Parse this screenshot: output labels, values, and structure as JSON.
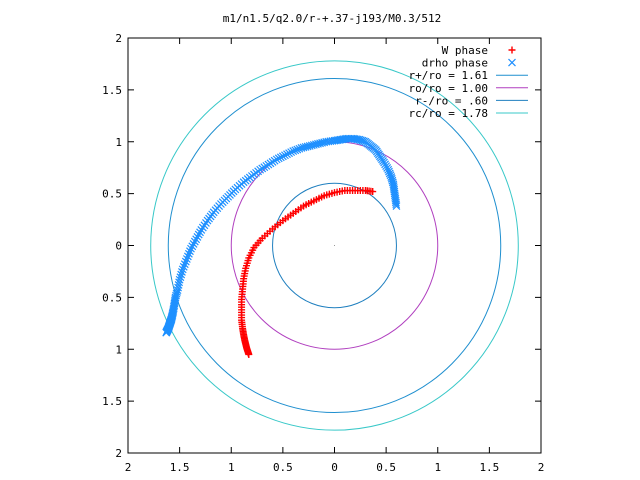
{
  "chart_data": {
    "type": "scatter",
    "title": "m1/n1.5/q2.0/r-+.37-j193/M0.3/512",
    "xlabel": "",
    "ylabel": "",
    "xlim": [
      2,
      -2
    ],
    "ylim": [
      -2,
      2
    ],
    "x_ticks": [
      2,
      1.5,
      1,
      0.5,
      0,
      -0.5,
      -1,
      -1.5,
      -2
    ],
    "y_ticks": [
      -2,
      -1.5,
      -1,
      -0.5,
      0,
      0.5,
      1,
      1.5,
      2
    ],
    "x_tick_labels": [
      "2",
      "1.5",
      "1",
      "0.5",
      "0",
      "0.5",
      "1",
      "1.5",
      "2"
    ],
    "y_tick_labels": [
      "2",
      "1.5",
      "1",
      "0.5",
      "0",
      "0.5",
      "1",
      "1.5",
      "2"
    ],
    "grid": false,
    "legend_position": "top-right",
    "series": [
      {
        "name": "W phase",
        "kind": "points",
        "marker": "+",
        "color": "#ff0000",
        "x": [
          -0.37,
          -0.3,
          -0.2,
          -0.1,
          0.0,
          0.1,
          0.2,
          0.3,
          0.4,
          0.5,
          0.6,
          0.7,
          0.78,
          0.83,
          0.86,
          0.88,
          0.89,
          0.9,
          0.9,
          0.9,
          0.89,
          0.88,
          0.87,
          0.86,
          0.85,
          0.84,
          0.83
        ],
        "y": [
          0.52,
          0.53,
          0.53,
          0.53,
          0.51,
          0.48,
          0.43,
          0.38,
          0.31,
          0.24,
          0.16,
          0.07,
          -0.02,
          -0.12,
          -0.22,
          -0.32,
          -0.42,
          -0.52,
          -0.62,
          -0.72,
          -0.8,
          -0.86,
          -0.91,
          -0.95,
          -0.99,
          -1.02,
          -1.05
        ]
      },
      {
        "name": "drho phase",
        "kind": "points",
        "marker": "x",
        "color": "#1e90ff",
        "x": [
          -0.6,
          -0.59,
          -0.58,
          -0.57,
          -0.55,
          -0.52,
          -0.48,
          -0.44,
          -0.4,
          -0.35,
          -0.3,
          -0.24,
          -0.18,
          -0.12,
          -0.06,
          0.0,
          0.08,
          0.16,
          0.24,
          0.32,
          0.4,
          0.48,
          0.56,
          0.64,
          0.72,
          0.8,
          0.88,
          0.96,
          1.03,
          1.1,
          1.17,
          1.23,
          1.29,
          1.34,
          1.39,
          1.43,
          1.47,
          1.5,
          1.52,
          1.54,
          1.55,
          1.56,
          1.57,
          1.58,
          1.59,
          1.6,
          1.61,
          1.62,
          1.63
        ],
        "y": [
          0.38,
          0.45,
          0.52,
          0.59,
          0.66,
          0.73,
          0.8,
          0.86,
          0.92,
          0.96,
          1.0,
          1.02,
          1.03,
          1.03,
          1.02,
          1.01,
          1.0,
          0.98,
          0.96,
          0.94,
          0.91,
          0.87,
          0.83,
          0.78,
          0.73,
          0.67,
          0.61,
          0.54,
          0.47,
          0.4,
          0.32,
          0.24,
          0.15,
          0.06,
          -0.03,
          -0.13,
          -0.23,
          -0.33,
          -0.43,
          -0.5,
          -0.56,
          -0.62,
          -0.67,
          -0.71,
          -0.74,
          -0.77,
          -0.8,
          -0.82,
          -0.84
        ]
      },
      {
        "name": "r+/ro = 1.61",
        "kind": "circle",
        "radius": 1.61,
        "color": "#1f8fcf"
      },
      {
        "name": "ro/ro = 1.00",
        "kind": "circle",
        "radius": 1.0,
        "color": "#b03fbf"
      },
      {
        "name": "r-/ro = .60",
        "kind": "circle",
        "radius": 0.6,
        "color": "#1f7fbf"
      },
      {
        "name": "rc/ro = 1.78",
        "kind": "circle",
        "radius": 1.78,
        "color": "#38c8c8"
      }
    ]
  }
}
